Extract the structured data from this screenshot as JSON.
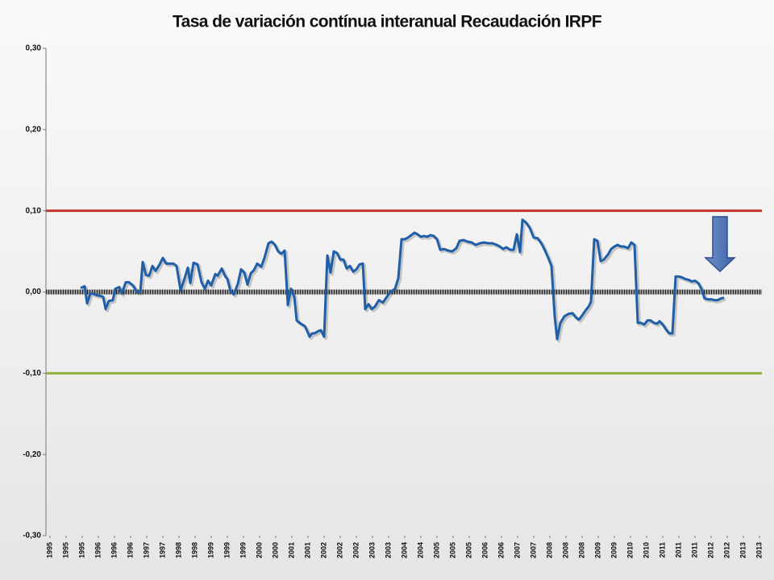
{
  "chart_data": {
    "type": "line",
    "title": "Tasa de variación contínua interanual Recaudación IRPF",
    "ylim": [
      -0.3,
      0.3
    ],
    "yticks": [
      {
        "value": -0.3,
        "label": "-0,30"
      },
      {
        "value": -0.2,
        "label": "-0,20"
      },
      {
        "value": -0.1,
        "label": "-0,10"
      },
      {
        "value": 0,
        "label": "0,00"
      },
      {
        "value": 0.1,
        "label": "0,10"
      },
      {
        "value": 0.2,
        "label": "0,20"
      },
      {
        "value": 0.3,
        "label": "0,30"
      }
    ],
    "xlim": [
      -0.25,
      44.15
    ],
    "xticks": [
      {
        "value": 0,
        "label": "1995"
      },
      {
        "value": 1,
        "label": "1995"
      },
      {
        "value": 2,
        "label": "1995"
      },
      {
        "value": 3,
        "label": "1996"
      },
      {
        "value": 4,
        "label": "1996"
      },
      {
        "value": 5,
        "label": "1996"
      },
      {
        "value": 6,
        "label": "1997"
      },
      {
        "value": 7,
        "label": "1997"
      },
      {
        "value": 8,
        "label": "1998"
      },
      {
        "value": 9,
        "label": "1998"
      },
      {
        "value": 10,
        "label": "1999"
      },
      {
        "value": 11,
        "label": "1999"
      },
      {
        "value": 12,
        "label": "1999"
      },
      {
        "value": 13,
        "label": "2000"
      },
      {
        "value": 14,
        "label": "2000"
      },
      {
        "value": 15,
        "label": "2001"
      },
      {
        "value": 16,
        "label": "2001"
      },
      {
        "value": 17,
        "label": "2002"
      },
      {
        "value": 18,
        "label": "2002"
      },
      {
        "value": 19,
        "label": "2002"
      },
      {
        "value": 20,
        "label": "2003"
      },
      {
        "value": 21,
        "label": "2003"
      },
      {
        "value": 22,
        "label": "2004"
      },
      {
        "value": 23,
        "label": "2004"
      },
      {
        "value": 24,
        "label": "2005"
      },
      {
        "value": 25,
        "label": "2005"
      },
      {
        "value": 26,
        "label": "2005"
      },
      {
        "value": 27,
        "label": "2006"
      },
      {
        "value": 28,
        "label": "2006"
      },
      {
        "value": 29,
        "label": "2007"
      },
      {
        "value": 30,
        "label": "2007"
      },
      {
        "value": 31,
        "label": "2008"
      },
      {
        "value": 32,
        "label": "2008"
      },
      {
        "value": 33,
        "label": "2008"
      },
      {
        "value": 34,
        "label": "2009"
      },
      {
        "value": 35,
        "label": "2009"
      },
      {
        "value": 36,
        "label": "2010"
      },
      {
        "value": 37,
        "label": "2010"
      },
      {
        "value": 38,
        "label": "2011"
      },
      {
        "value": 39,
        "label": "2011"
      },
      {
        "value": 40,
        "label": "2011"
      },
      {
        "value": 41,
        "label": "2012"
      },
      {
        "value": 42,
        "label": "2012"
      },
      {
        "value": 43,
        "label": "2013"
      },
      {
        "value": 44,
        "label": "2013"
      }
    ],
    "reference_lines": [
      {
        "value": 0.1,
        "color": "#c0392b"
      },
      {
        "value": -0.1,
        "color": "#8db33a"
      }
    ],
    "series": [
      {
        "color": "#1f5fa8",
        "x": [
          1.9,
          2.15,
          2.3,
          2.5,
          2.65,
          2.9,
          3.15,
          3.3,
          3.45,
          3.65,
          3.9,
          4.05,
          4.3,
          4.45,
          4.7,
          4.9,
          5.15,
          5.4,
          5.6,
          5.75,
          5.95,
          6.15,
          6.35,
          6.55,
          6.8,
          7.0,
          7.2,
          7.4,
          7.65,
          7.85,
          8.1,
          8.35,
          8.55,
          8.7,
          8.9,
          9.15,
          9.4,
          9.6,
          9.8,
          10.0,
          10.25,
          10.4,
          10.65,
          10.85,
          11.0,
          11.2,
          11.4,
          11.65,
          11.85,
          12.05,
          12.25,
          12.45,
          12.65,
          12.85,
          13.1,
          13.3,
          13.55,
          13.75,
          13.95,
          14.15,
          14.35,
          14.55,
          14.75,
          14.95,
          15.15,
          15.3,
          15.55,
          15.8,
          15.95,
          16.1,
          16.25,
          16.4,
          16.65,
          16.8,
          17.0,
          17.2,
          17.4,
          17.6,
          17.8,
          18.0,
          18.2,
          18.4,
          18.6,
          18.8,
          19.0,
          19.2,
          19.4,
          19.55,
          19.75,
          19.95,
          20.15,
          20.4,
          20.65,
          20.85,
          21.1,
          21.4,
          21.6,
          21.8,
          22.0,
          22.2,
          22.4,
          22.6,
          22.8,
          23.0,
          23.2,
          23.4,
          23.6,
          23.8,
          24.0,
          24.2,
          24.45,
          24.7,
          24.95,
          25.2,
          25.4,
          25.65,
          25.9,
          26.15,
          26.4,
          26.65,
          26.9,
          27.2,
          27.45,
          27.7,
          27.9,
          28.1,
          28.3,
          28.55,
          28.75,
          28.95,
          29.15,
          29.3,
          29.5,
          29.75,
          30.0,
          30.25,
          30.5,
          30.7,
          30.9,
          31.1,
          31.3,
          31.45,
          31.65,
          31.9,
          32.15,
          32.4,
          32.6,
          32.8,
          33.0,
          33.2,
          33.4,
          33.55,
          33.75,
          33.95,
          34.15,
          34.35,
          34.6,
          34.8,
          35.0,
          35.2,
          35.4,
          35.6,
          35.85,
          36.05,
          36.25,
          36.45,
          36.65,
          36.85,
          37.05,
          37.25,
          37.45,
          37.65,
          37.8,
          38.0,
          38.2,
          38.4,
          38.6,
          38.8,
          39.0,
          39.2,
          39.4,
          39.6,
          39.8,
          40.0,
          40.2,
          40.4,
          40.6,
          40.8,
          41.0,
          41.2,
          41.4,
          41.6,
          41.8
        ],
        "values": [
          0.005,
          0.007,
          -0.014,
          -0.002,
          -0.002,
          -0.004,
          -0.005,
          -0.006,
          -0.021,
          -0.011,
          -0.01,
          0.004,
          0.006,
          -0.002,
          0.012,
          0.012,
          0.008,
          0,
          0,
          0.037,
          0.021,
          0.02,
          0.032,
          0.026,
          0.034,
          0.042,
          0.035,
          0.035,
          0.035,
          0.032,
          0.002,
          0.017,
          0.03,
          0.011,
          0.036,
          0.034,
          0.012,
          0.004,
          0.014,
          0.008,
          0.022,
          0.02,
          0.029,
          0.02,
          0.016,
          0.001,
          -0.003,
          0.01,
          0.028,
          0.024,
          0.009,
          0.023,
          0.027,
          0.035,
          0.031,
          0.042,
          0.06,
          0.062,
          0.058,
          0.05,
          0.047,
          0.051,
          -0.016,
          0.004,
          -0.006,
          -0.035,
          -0.039,
          -0.042,
          -0.048,
          -0.055,
          -0.051,
          -0.051,
          -0.048,
          -0.047,
          -0.055,
          0.045,
          0.024,
          0.05,
          0.048,
          0.04,
          0.04,
          0.029,
          0.032,
          0.025,
          0.028,
          0.034,
          0.035,
          -0.021,
          -0.015,
          -0.021,
          -0.018,
          -0.01,
          -0.013,
          -0.007,
          0,
          0.004,
          0.017,
          0.065,
          0.065,
          0.067,
          0.07,
          0.073,
          0.071,
          0.068,
          0.069,
          0.068,
          0.07,
          0.069,
          0.065,
          0.052,
          0.053,
          0.051,
          0.05,
          0.054,
          0.063,
          0.064,
          0.062,
          0.061,
          0.058,
          0.06,
          0.061,
          0.06,
          0.06,
          0.058,
          0.056,
          0.053,
          0.055,
          0.052,
          0.052,
          0.071,
          0.049,
          0.089,
          0.086,
          0.079,
          0.067,
          0.066,
          0.059,
          0.051,
          0.042,
          0.032,
          -0.03,
          -0.058,
          -0.038,
          -0.03,
          -0.027,
          -0.026,
          -0.031,
          -0.034,
          -0.029,
          -0.023,
          -0.018,
          -0.012,
          0.065,
          0.063,
          0.038,
          0.04,
          0.046,
          0.053,
          0.056,
          0.058,
          0.056,
          0.056,
          0.054,
          0.061,
          0.058,
          -0.038,
          -0.038,
          -0.04,
          -0.035,
          -0.035,
          -0.038,
          -0.039,
          -0.036,
          -0.04,
          -0.046,
          -0.051,
          -0.051,
          0.019,
          0.019,
          0.018,
          0.016,
          0.015,
          0.013,
          0.014,
          0.011,
          0.004,
          -0.008,
          -0.009,
          -0.009,
          -0.01,
          -0.01,
          -0.008,
          -0.007
        ]
      }
    ]
  }
}
